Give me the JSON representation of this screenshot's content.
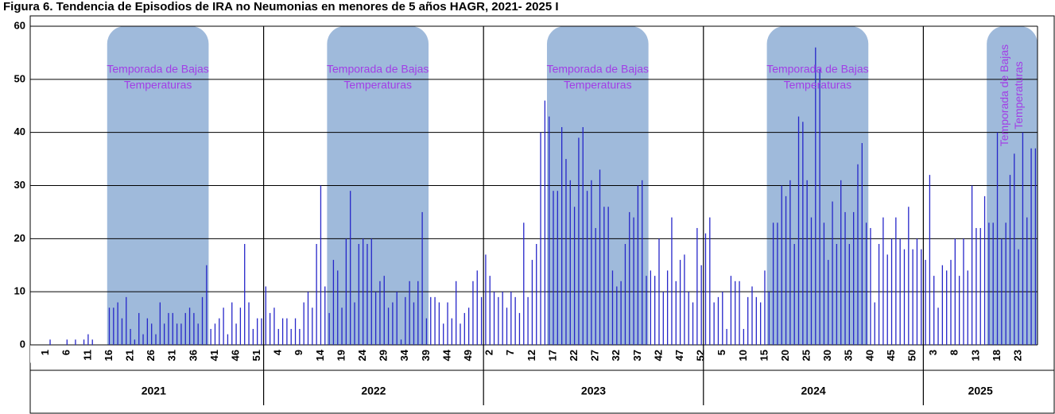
{
  "chart_data": {
    "type": "bar",
    "title": "Figura 6. Tendencia de Episodios de IRA no Neumonias en menores de 5 años HAGR, 2021- 2025 I",
    "color": "#2626c9",
    "ylim": [
      0,
      60
    ],
    "yticks": [
      0,
      10,
      20,
      30,
      40,
      50,
      60
    ],
    "grid": true,
    "groups": [
      {
        "label": "2021",
        "count": 52
      },
      {
        "label": "2022",
        "count": 52
      },
      {
        "label": "2023",
        "count": 52
      },
      {
        "label": "2024",
        "count": 52
      },
      {
        "label": "2025",
        "count": 27
      }
    ],
    "seasons": [
      {
        "lines": [
          "Temporada de Bajas",
          "Temperaturas"
        ],
        "start": 15,
        "end": 38
      },
      {
        "lines": [
          "Temporada de Bajas",
          "Temperaturas"
        ],
        "start": 67,
        "end": 90
      },
      {
        "lines": [
          "Temporada de Bajas",
          "Temperaturas"
        ],
        "start": 119,
        "end": 142
      },
      {
        "lines": [
          "Temporada de Bajas",
          "Temperaturas"
        ],
        "start": 171,
        "end": 194
      },
      {
        "lines": [
          "Temporada de Bajas",
          "Temperaturas"
        ],
        "start": 223,
        "end": 234,
        "rotated": true
      }
    ],
    "categories": [
      1,
      null,
      null,
      null,
      null,
      6,
      null,
      null,
      null,
      null,
      11,
      null,
      null,
      null,
      null,
      16,
      null,
      null,
      null,
      null,
      21,
      null,
      null,
      null,
      null,
      26,
      null,
      null,
      null,
      null,
      31,
      null,
      null,
      null,
      null,
      36,
      null,
      null,
      null,
      null,
      41,
      null,
      null,
      null,
      null,
      46,
      null,
      null,
      null,
      null,
      51,
      null,
      null,
      null,
      null,
      4,
      null,
      null,
      null,
      null,
      9,
      null,
      null,
      null,
      null,
      14,
      null,
      null,
      null,
      null,
      19,
      null,
      null,
      null,
      null,
      24,
      null,
      null,
      null,
      null,
      29,
      null,
      null,
      null,
      null,
      34,
      null,
      null,
      null,
      null,
      39,
      null,
      null,
      null,
      null,
      44,
      null,
      null,
      null,
      null,
      49,
      null,
      null,
      null,
      null,
      2,
      null,
      null,
      null,
      null,
      7,
      null,
      null,
      null,
      null,
      12,
      null,
      null,
      null,
      null,
      17,
      null,
      null,
      null,
      null,
      22,
      null,
      null,
      null,
      null,
      27,
      null,
      null,
      null,
      null,
      32,
      null,
      null,
      null,
      null,
      37,
      null,
      null,
      null,
      null,
      42,
      null,
      null,
      null,
      null,
      47,
      null,
      null,
      null,
      null,
      52,
      null,
      null,
      null,
      null,
      5,
      null,
      null,
      null,
      null,
      10,
      null,
      null,
      null,
      null,
      15,
      null,
      null,
      null,
      null,
      20,
      null,
      null,
      null,
      null,
      25,
      null,
      null,
      null,
      null,
      30,
      null,
      null,
      null,
      null,
      35,
      null,
      null,
      null,
      null,
      40,
      null,
      null,
      null,
      null,
      45,
      null,
      null,
      null,
      null,
      50,
      null,
      null,
      null,
      null,
      3,
      null,
      null,
      null,
      null,
      8,
      null,
      null,
      null,
      null,
      13,
      null,
      null,
      null,
      null,
      18,
      null,
      null,
      null,
      null,
      23,
      null,
      null,
      null,
      null
    ],
    "values": [
      0,
      1,
      0,
      0,
      0,
      1,
      0,
      1,
      0,
      1,
      2,
      1,
      0,
      0,
      0,
      7,
      7,
      8,
      5,
      9,
      3,
      1,
      6,
      2,
      5,
      4,
      2,
      8,
      4,
      6,
      6,
      4,
      4,
      6,
      7,
      6,
      4,
      9,
      15,
      3,
      4,
      5,
      7,
      2,
      8,
      4,
      7,
      19,
      8,
      3,
      5,
      5,
      11,
      6,
      7,
      3,
      5,
      5,
      3,
      5,
      3,
      8,
      10,
      7,
      19,
      30,
      11,
      6,
      16,
      14,
      7,
      20,
      29,
      8,
      19,
      20,
      19,
      20,
      10,
      12,
      13,
      7,
      8,
      10,
      1,
      9,
      12,
      8,
      12,
      25,
      5,
      9,
      9,
      8,
      4,
      8,
      5,
      12,
      4,
      6,
      7,
      12,
      14,
      9,
      17,
      13,
      10,
      9,
      10,
      7,
      10,
      9,
      6,
      23,
      9,
      16,
      19,
      40,
      46,
      43,
      29,
      29,
      41,
      35,
      31,
      26,
      39,
      41,
      29,
      31,
      22,
      33,
      26,
      26,
      14,
      11,
      12,
      19,
      25,
      24,
      30,
      31,
      13,
      14,
      13,
      20,
      10,
      14,
      24,
      12,
      16,
      17,
      10,
      8,
      22,
      15,
      21,
      24,
      8,
      9,
      10,
      3,
      13,
      12,
      12,
      3,
      9,
      11,
      9,
      8,
      14,
      10,
      23,
      23,
      30,
      28,
      31,
      19,
      43,
      42,
      31,
      24,
      56,
      52,
      23,
      16,
      27,
      19,
      31,
      25,
      19,
      25,
      34,
      38,
      23,
      22,
      8,
      19,
      24,
      17,
      20,
      24,
      20,
      18,
      26,
      18,
      20,
      18,
      16,
      32,
      13,
      7,
      15,
      14,
      16,
      20,
      13,
      20,
      14,
      30,
      22,
      22,
      28,
      23,
      23,
      40,
      20,
      23,
      32,
      36,
      18,
      40,
      24,
      37,
      37
    ]
  }
}
